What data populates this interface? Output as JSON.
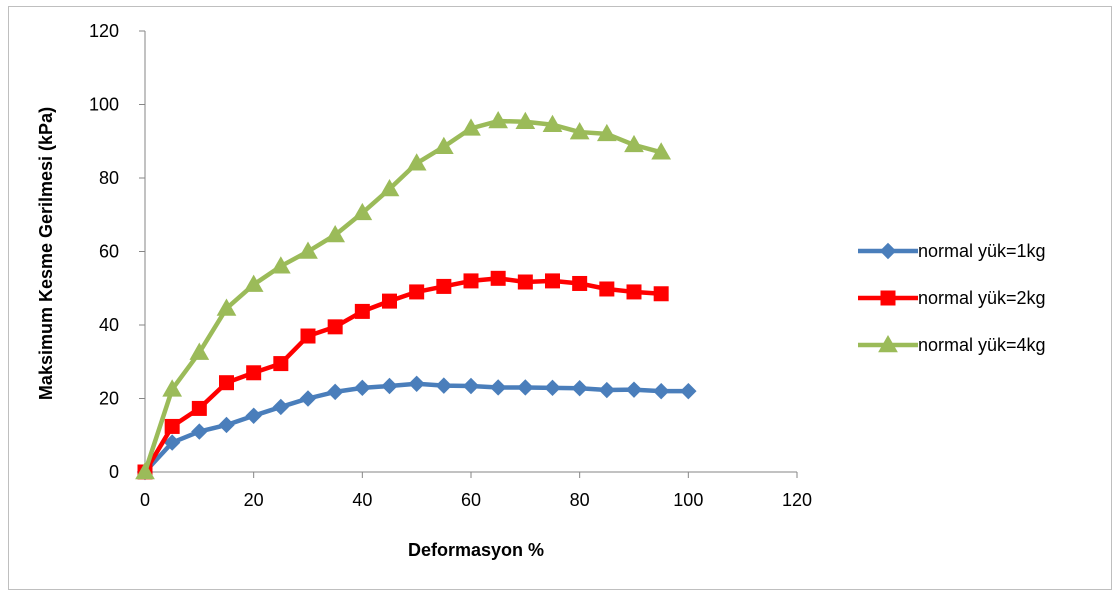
{
  "chart_data": {
    "type": "line",
    "title": "",
    "xlabel": "Deformasyon %",
    "ylabel": "Maksimum Kesme Gerilmesi (kPa)",
    "xlim": [
      0,
      120
    ],
    "ylim": [
      0,
      120
    ],
    "xticks": [
      "0",
      "20",
      "40",
      "60",
      "80",
      "100",
      "120"
    ],
    "yticks": [
      "0",
      "20",
      "40",
      "60",
      "80",
      "100",
      "120"
    ],
    "grid": false,
    "legend_position": "right",
    "series": [
      {
        "name": "normal yük=1kg",
        "color": "#4a7ebb",
        "marker": "diamond",
        "x": [
          0,
          5,
          10,
          15,
          20,
          25,
          30,
          35,
          40,
          45,
          50,
          55,
          60,
          65,
          70,
          75,
          80,
          85,
          90,
          95,
          100
        ],
        "y": [
          0,
          8,
          11,
          12.8,
          15.3,
          17.7,
          20,
          21.8,
          22.9,
          23.4,
          24,
          23.5,
          23.4,
          23,
          23,
          22.9,
          22.8,
          22.3,
          22.4,
          22,
          22
        ]
      },
      {
        "name": "normal yük=2kg",
        "color": "#ff0000",
        "marker": "square",
        "x": [
          0,
          5,
          10,
          15,
          20,
          25,
          30,
          35,
          40,
          45,
          50,
          55,
          60,
          65,
          70,
          75,
          80,
          85,
          90,
          95
        ],
        "y": [
          0,
          12.4,
          17.3,
          24.3,
          27,
          29.5,
          37,
          39.5,
          43.7,
          46.5,
          49,
          50.5,
          52,
          52.7,
          51.7,
          52,
          51.3,
          49.8,
          49,
          48.5
        ]
      },
      {
        "name": "normal yük=4kg",
        "color": "#9bbb59",
        "marker": "triangle",
        "x": [
          0,
          5,
          10,
          15,
          20,
          25,
          30,
          35,
          40,
          45,
          50,
          55,
          60,
          65,
          70,
          75,
          80,
          85,
          90,
          95
        ],
        "y": [
          0,
          22.5,
          32.5,
          44.5,
          51,
          56,
          60,
          64.5,
          70.5,
          77,
          84,
          88.5,
          93.5,
          95.5,
          95.3,
          94.5,
          92.5,
          92,
          89,
          87
        ]
      }
    ]
  }
}
